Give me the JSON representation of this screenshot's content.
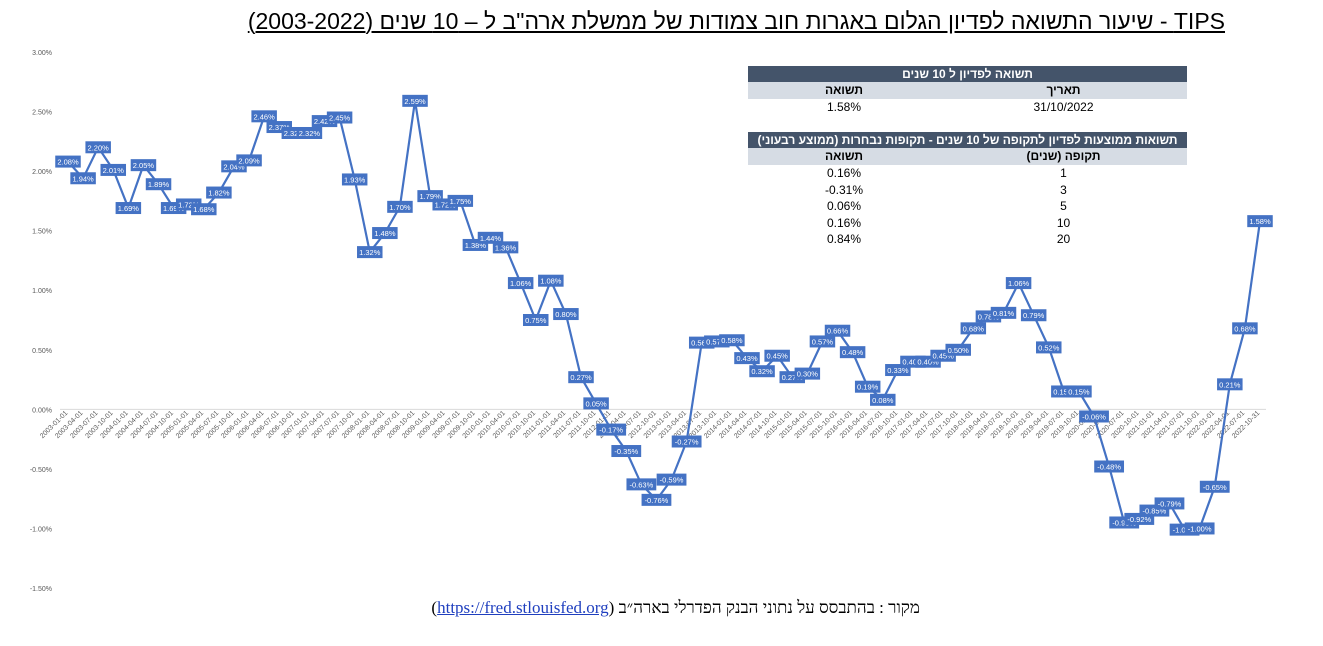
{
  "title": "TIPS - שיעור התשואה לפדיון הגלום באגרות חוב צמודות של ממשלת ארה\"ב ל – 10 שנים (2003-2022)",
  "table1": {
    "header": "תשואה לפדיון ל 10 שנים",
    "col_date": "תאריך",
    "col_yield": "תשואה",
    "date": "31/10/2022",
    "yield": "1.58%"
  },
  "table2": {
    "header": "תשואות ממוצעות לפדיון לתקופה של 10 שנים - תקופות נבחרות (ממוצע רבעוני)",
    "col_period": "תקופה (שנים)",
    "col_yield": "תשואה",
    "rows": [
      {
        "period": "1",
        "yield": "0.16%"
      },
      {
        "period": "3",
        "yield": "-0.31%"
      },
      {
        "period": "5",
        "yield": "0.06%"
      },
      {
        "period": "10",
        "yield": "0.16%"
      },
      {
        "period": "20",
        "yield": "0.84%"
      }
    ]
  },
  "source": {
    "prefix": "מקור : בהתבסס על נתוני הבנק הפדרלי בארה״ב (",
    "link": "https://fred.stlouisfed.org",
    "suffix": ")"
  },
  "colors": {
    "line": "#4472c4",
    "label_bg": "#4472c4",
    "label_text": "#ffffff",
    "axis": "#d9d9d9",
    "tick_text": "#595959"
  },
  "chart_data": {
    "type": "line",
    "ylim": [
      -0.015,
      0.03
    ],
    "yticks": [
      "3.00%",
      "2.50%",
      "2.00%",
      "1.50%",
      "1.00%",
      "0.50%",
      "0.00%",
      "-0.50%",
      "-1.00%",
      "-1.50%"
    ],
    "ytick_values": [
      0.03,
      0.025,
      0.02,
      0.015,
      0.01,
      0.005,
      0,
      -0.005,
      -0.01,
      -0.015
    ],
    "x": [
      "2003-01-01",
      "2003-04-01",
      "2003-07-01",
      "2003-10-01",
      "2004-01-01",
      "2004-04-01",
      "2004-07-01",
      "2004-10-01",
      "2005-01-01",
      "2005-04-01",
      "2005-07-01",
      "2005-10-01",
      "2006-01-01",
      "2006-04-01",
      "2006-07-01",
      "2006-10-01",
      "2007-01-01",
      "2007-04-01",
      "2007-07-01",
      "2007-10-01",
      "2008-01-01",
      "2008-04-01",
      "2008-07-01",
      "2008-10-01",
      "2009-01-01",
      "2009-04-01",
      "2009-07-01",
      "2009-10-01",
      "2010-01-01",
      "2010-04-01",
      "2010-07-01",
      "2010-10-01",
      "2011-01-01",
      "2011-04-01",
      "2011-07-01",
      "2011-10-01",
      "2012-01-01",
      "2012-04-01",
      "2012-07-01",
      "2012-10-01",
      "2013-01-01",
      "2013-04-01",
      "2013-07-01",
      "2013-10-01",
      "2014-01-01",
      "2014-04-01",
      "2014-07-01",
      "2014-10-01",
      "2015-01-01",
      "2015-04-01",
      "2015-07-01",
      "2015-10-01",
      "2016-01-01",
      "2016-04-01",
      "2016-07-01",
      "2016-10-01",
      "2017-01-01",
      "2017-04-01",
      "2017-07-01",
      "2017-10-01",
      "2018-01-01",
      "2018-04-01",
      "2018-07-01",
      "2018-10-01",
      "2019-01-01",
      "2019-04-01",
      "2019-07-01",
      "2019-10-01",
      "2020-01-01",
      "2020-04-01",
      "2020-07-01",
      "2020-10-01",
      "2021-01-01",
      "2021-04-01",
      "2021-07-01",
      "2021-10-01",
      "2022-01-01",
      "2022-04-01",
      "2022-07-01",
      "2022-10-31"
    ],
    "values": [
      0.0208,
      0.0194,
      0.022,
      0.0201,
      0.0169,
      0.0205,
      0.0189,
      0.0169,
      0.0172,
      0.0168,
      0.0182,
      0.0204,
      0.0209,
      0.0246,
      0.0237,
      0.0232,
      0.0232,
      0.0242,
      0.0245,
      0.0193,
      0.0132,
      0.0148,
      0.017,
      0.0259,
      0.0179,
      0.0172,
      0.0175,
      0.0138,
      0.0144,
      0.0136,
      0.0106,
      0.0075,
      0.0108,
      0.008,
      0.0027,
      0.0005,
      -0.0017,
      -0.0035,
      -0.0063,
      -0.0076,
      -0.0059,
      -0.0027,
      0.0056,
      0.0057,
      0.0058,
      0.0043,
      0.0032,
      0.0045,
      0.0027,
      0.003,
      0.0057,
      0.0066,
      0.0048,
      0.0019,
      0.0008,
      0.0033,
      0.004,
      0.004,
      0.0045,
      0.005,
      0.0068,
      0.0078,
      0.0081,
      0.0106,
      0.0079,
      0.0052,
      0.0015,
      0.0015,
      -0.0006,
      -0.0048,
      -0.0095,
      -0.0092,
      -0.0085,
      -0.0079,
      -0.0101,
      -0.01,
      -0.0065,
      0.0021,
      0.0068,
      0.0158
    ],
    "labels": [
      "2.08%",
      "1.94%",
      "2.20%",
      "2.01%",
      "1.69%",
      "2.05%",
      "1.89%",
      "1.69%",
      "1.72%",
      "1.68%",
      "1.82%",
      "2.04%",
      "2.09%",
      "2.46%",
      "2.37%",
      "2.32%",
      "2.32%",
      "2.42%",
      "2.45%",
      "1.93%",
      "1.32%",
      "1.48%",
      "1.70%",
      "2.59%",
      "1.79%",
      "1.72%",
      "1.75%",
      "1.38%",
      "1.44%",
      "1.36%",
      "1.06%",
      "0.75%",
      "1.08%",
      "0.80%",
      "0.27%",
      "0.05%",
      "-0.17%",
      "-0.35%",
      "-0.63%",
      "-0.76%",
      "-0.59%",
      "-0.27%",
      "0.56%",
      "0.57%",
      "0.58%",
      "0.43%",
      "0.32%",
      "0.45%",
      "0.27%",
      "0.30%",
      "0.57%",
      "0.66%",
      "0.48%",
      "0.19%",
      "0.08%",
      "0.33%",
      "0.40%",
      "0.40%",
      "0.45%",
      "0.50%",
      "0.68%",
      "0.78%",
      "0.81%",
      "1.06%",
      "0.79%",
      "0.52%",
      "0.15%",
      "0.15%",
      "-0.06%",
      "-0.48%",
      "-0.95%",
      "-0.92%",
      "-0.85%",
      "-0.79%",
      "-1.01%",
      "-1.00%",
      "-0.65%",
      "0.21%",
      "0.68%",
      "1.58%"
    ]
  }
}
